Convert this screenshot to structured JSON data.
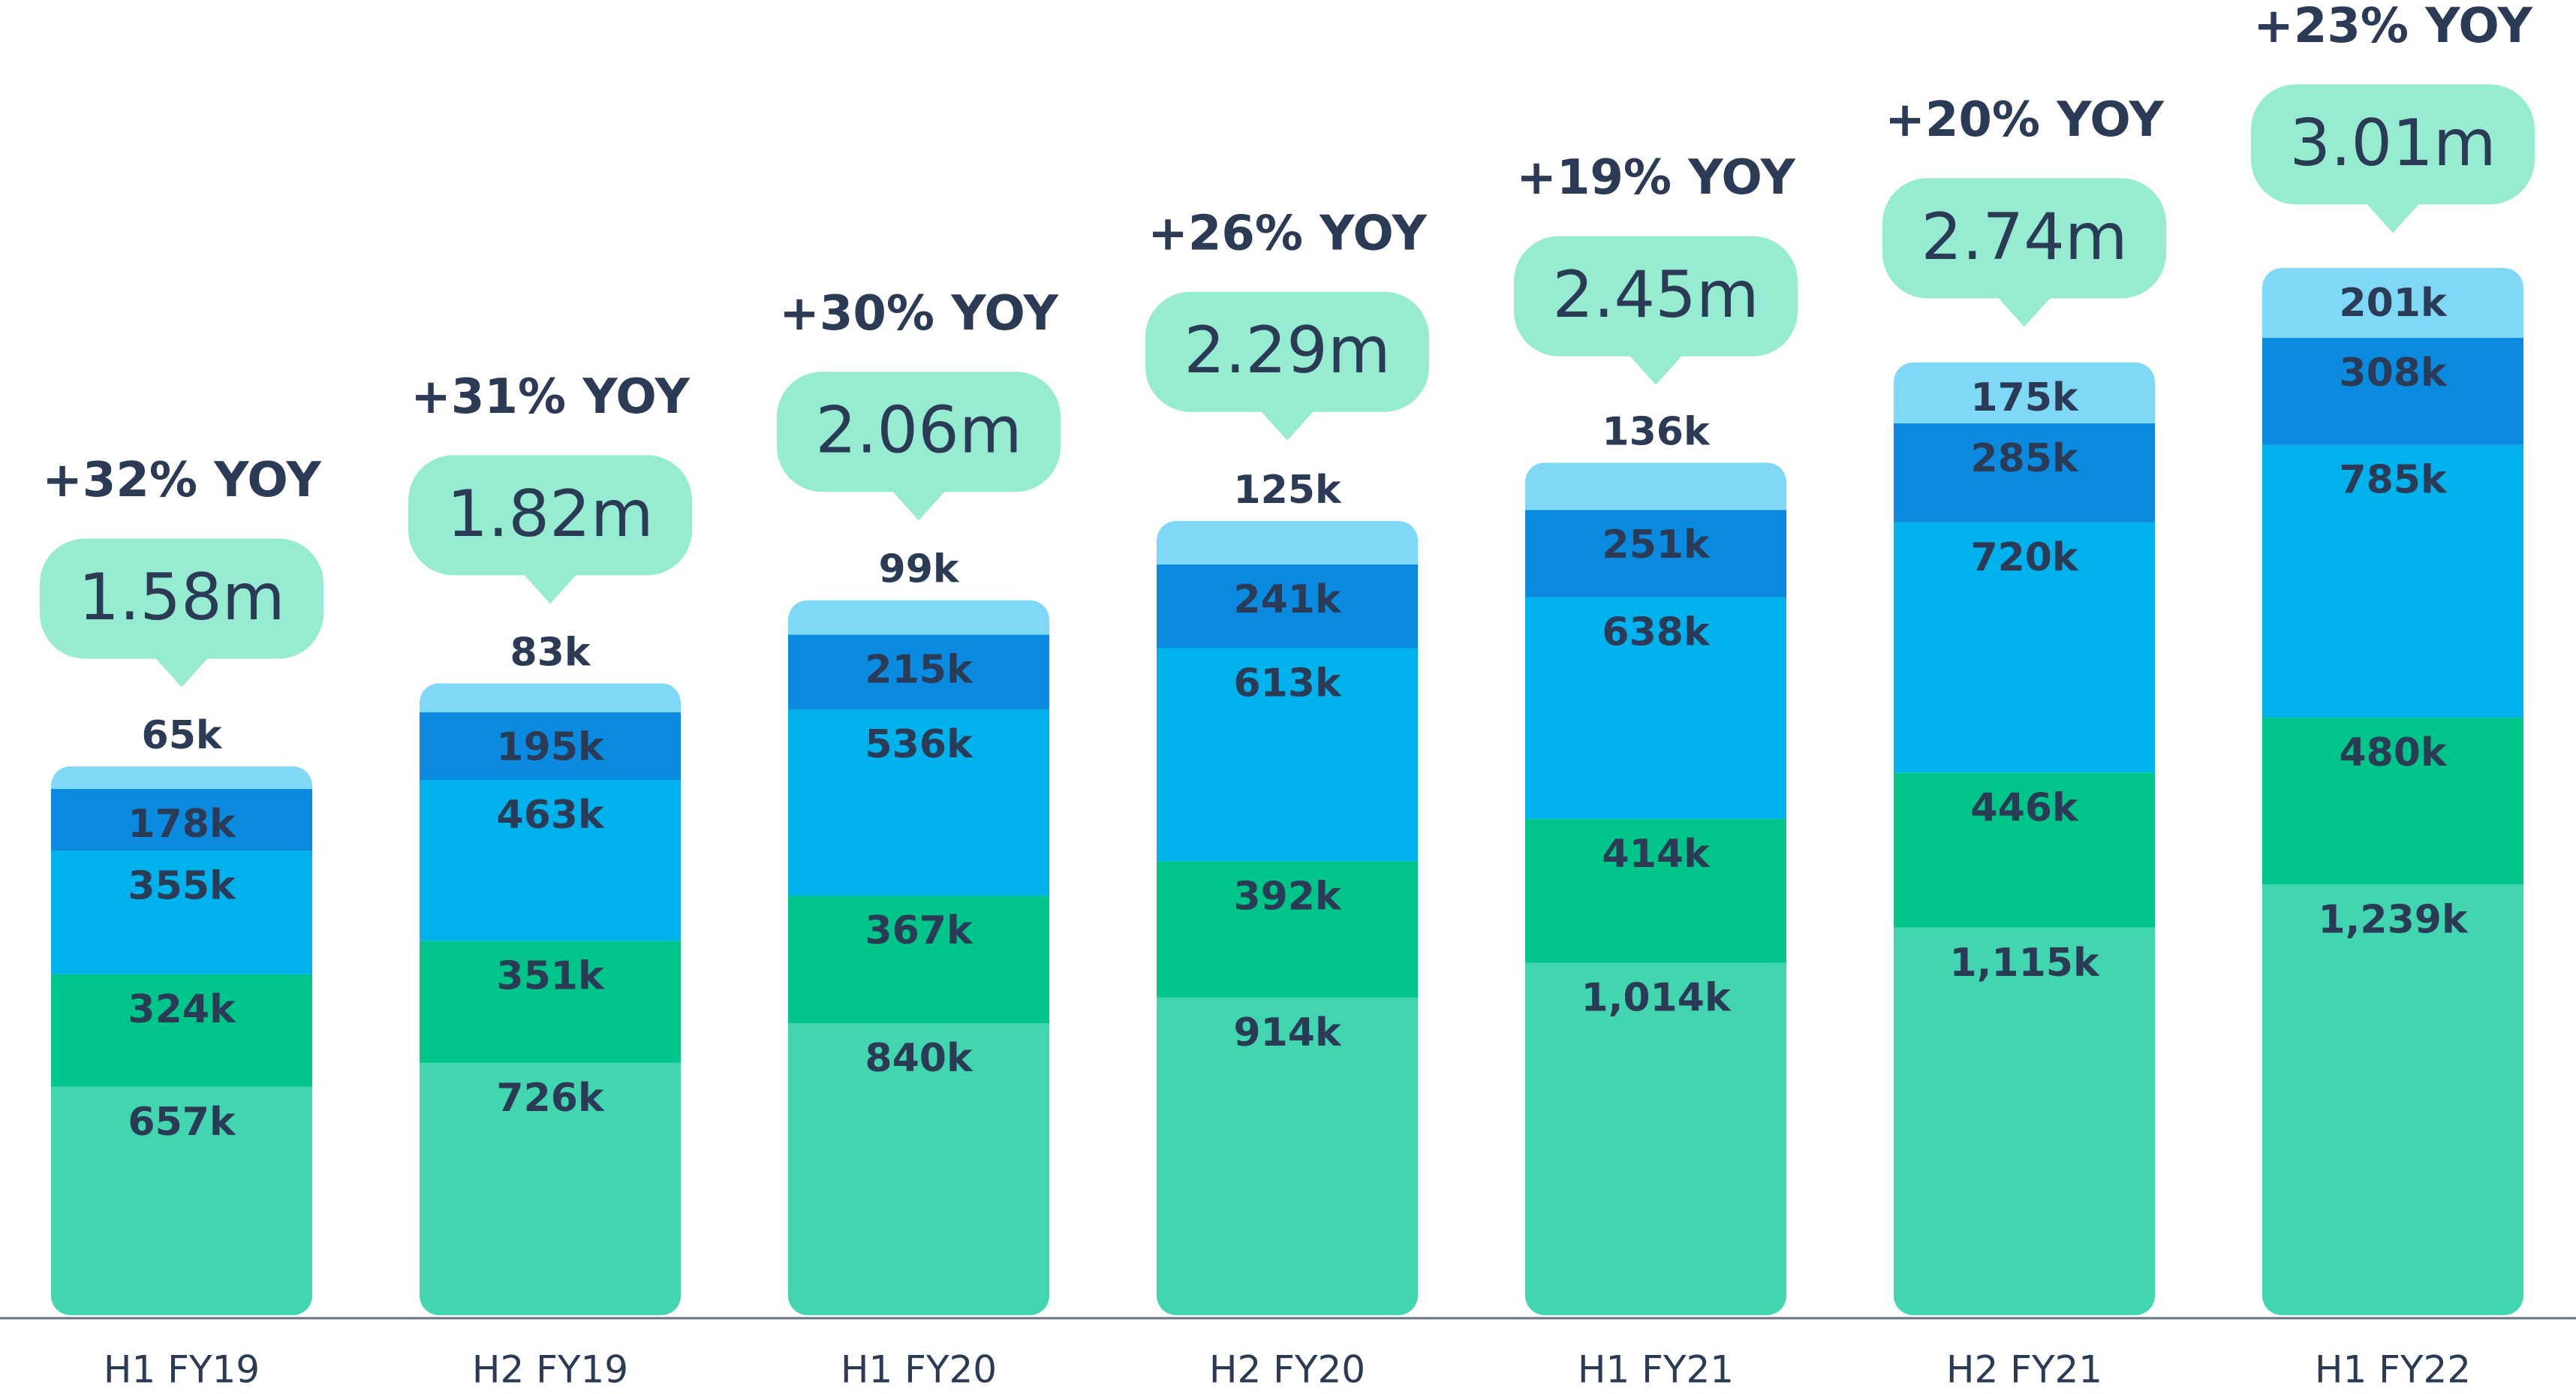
{
  "chart_data": {
    "type": "stacked_bar",
    "categories": [
      "H1 FY19",
      "H2 FY19",
      "H1 FY20",
      "H2 FY20",
      "H1 FY21",
      "H2 FY21",
      "H1 FY22"
    ],
    "series": [
      {
        "color": "#41d6b0",
        "values": [
          657,
          726,
          840,
          914,
          1014,
          1115,
          1239
        ],
        "value_labels": [
          "657k",
          "726k",
          "840k",
          "914k",
          "1,014k",
          "1,115k",
          "1,239k"
        ]
      },
      {
        "color": "#00c58a",
        "values": [
          324,
          351,
          367,
          392,
          414,
          446,
          480
        ],
        "value_labels": [
          "324k",
          "351k",
          "367k",
          "392k",
          "414k",
          "446k",
          "480k"
        ]
      },
      {
        "color": "#00b2ec",
        "values": [
          355,
          463,
          536,
          613,
          638,
          720,
          785
        ],
        "value_labels": [
          "355k",
          "463k",
          "536k",
          "613k",
          "638k",
          "720k",
          "785k"
        ]
      },
      {
        "color": "#0a8be0",
        "values": [
          178,
          195,
          215,
          241,
          251,
          285,
          308
        ],
        "value_labels": [
          "178k",
          "195k",
          "215k",
          "241k",
          "251k",
          "285k",
          "308k"
        ]
      },
      {
        "color": "#7fd9f6",
        "values": [
          65,
          83,
          99,
          125,
          136,
          175,
          201
        ],
        "value_labels": [
          "65k",
          "83k",
          "99k",
          "125k",
          "136k",
          "175k",
          "201k"
        ]
      }
    ],
    "totals": {
      "color": "#96ecd1",
      "values": [
        1580,
        1820,
        2060,
        2290,
        2450,
        2740,
        3010
      ],
      "value_labels": [
        "1.58m",
        "1.82m",
        "2.06m",
        "2.29m",
        "2.45m",
        "2.74m",
        "3.01m"
      ]
    },
    "growth": {
      "values": [
        32,
        31,
        30,
        26,
        19,
        20,
        23
      ],
      "value_labels": [
        "+32% YOY",
        "+31% YOY",
        "+30% YOY",
        "+26% YOY",
        "+19% YOY",
        "+20% YOY",
        "+23% YOY"
      ]
    }
  }
}
